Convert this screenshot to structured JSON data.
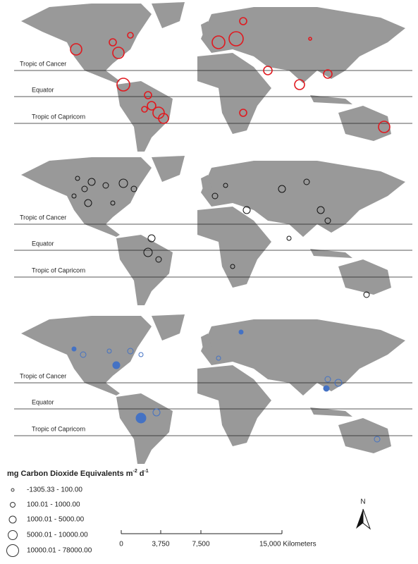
{
  "panels": [
    {
      "lines": [
        "Tropic of Cancer",
        "Equator",
        "Tropic of Capricorn"
      ]
    },
    {
      "lines": [
        "Tropic of Cancer",
        "Equator",
        "Tropic of Capricorn"
      ]
    },
    {
      "lines": [
        "Tropic of Cancer",
        "Equator",
        "Tropic of Capricorn"
      ]
    }
  ],
  "legend": {
    "title": "mg Carbon Dioxide Equivalents m",
    "exp1": "-2",
    "unit2": "d",
    "exp2": "-1",
    "classes": [
      "-1305.33 - 100.00",
      "100.01 - 1000.00",
      "1000.01 - 5000.00",
      "5000.01 - 10000.00",
      "10000.01 - 78000.00"
    ]
  },
  "scale": {
    "labels": [
      "0",
      "3,750",
      "7,500",
      "15,000 Kilometers"
    ]
  },
  "north": "N"
}
